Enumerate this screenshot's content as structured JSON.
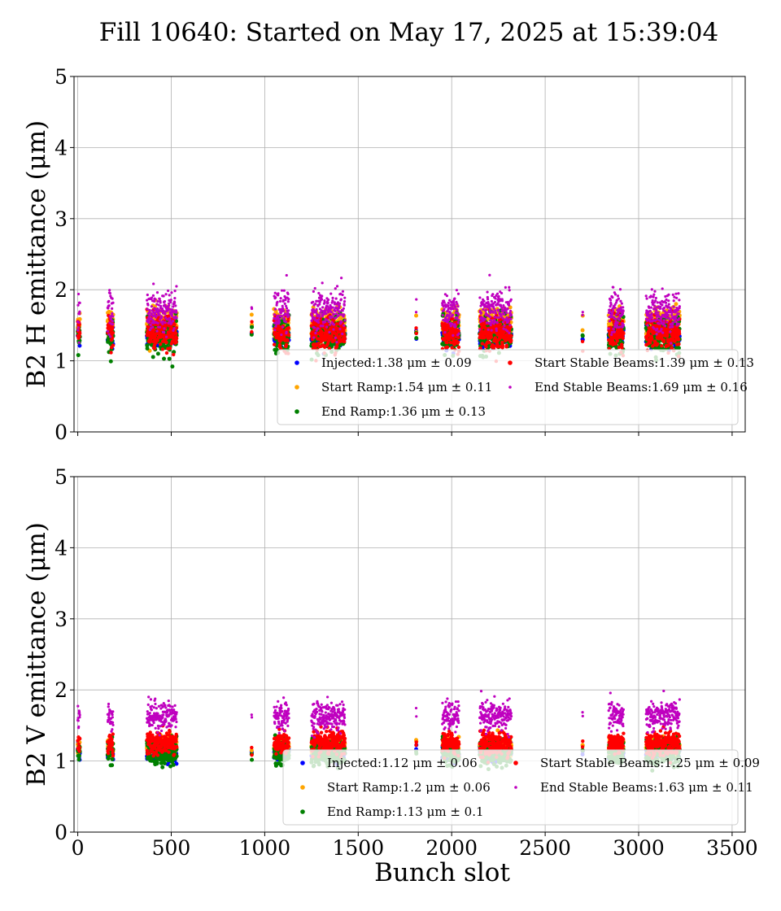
{
  "title": "Fill 10640: Started on May 17, 2025 at 15:39:04",
  "chart_data": [
    {
      "type": "scatter",
      "ylabel": "B2 H emittance (μm)",
      "xlabel": "",
      "xlim": [
        -20,
        3570
      ],
      "ylim": [
        0,
        5
      ],
      "xticks": [
        0,
        500,
        1000,
        1500,
        2000,
        2500,
        3000,
        3500
      ],
      "yticks": [
        0,
        1,
        2,
        3,
        4,
        5
      ],
      "grid": true,
      "legend_position": "lower-right",
      "series": [
        {
          "name": "Injected",
          "color": "#0000ff",
          "mean": 1.38,
          "std": 0.09,
          "label": "Injected:1.38 μm ± 0.09"
        },
        {
          "name": "Start Ramp",
          "color": "#ffa500",
          "mean": 1.54,
          "std": 0.11,
          "label": "Start Ramp:1.54 μm ± 0.11"
        },
        {
          "name": "End Ramp",
          "color": "#008000",
          "mean": 1.36,
          "std": 0.13,
          "label": "End Ramp:1.36 μm ± 0.13"
        },
        {
          "name": "Start Stable Beams",
          "color": "#ff0000",
          "mean": 1.39,
          "std": 0.13,
          "label": "Start Stable Beams:1.39 μm ± 0.13"
        },
        {
          "name": "End Stable Beams",
          "color": "#bf00bf",
          "mean": 1.69,
          "std": 0.16,
          "label": "End Stable Beams:1.69 μm ± 0.16"
        }
      ]
    },
    {
      "type": "scatter",
      "ylabel": "B2 V emittance (μm)",
      "xlabel": "Bunch slot",
      "xlim": [
        -20,
        3570
      ],
      "ylim": [
        0,
        5
      ],
      "xticks": [
        0,
        500,
        1000,
        1500,
        2000,
        2500,
        3000,
        3500
      ],
      "yticks": [
        0,
        1,
        2,
        3,
        4,
        5
      ],
      "grid": true,
      "legend_position": "lower-right",
      "series": [
        {
          "name": "Injected",
          "color": "#0000ff",
          "mean": 1.12,
          "std": 0.06,
          "label": "Injected:1.12 μm ± 0.06"
        },
        {
          "name": "Start Ramp",
          "color": "#ffa500",
          "mean": 1.2,
          "std": 0.06,
          "label": "Start Ramp:1.2 μm ± 0.06"
        },
        {
          "name": "End Ramp",
          "color": "#008000",
          "mean": 1.13,
          "std": 0.1,
          "label": "End Ramp:1.13 μm ± 0.1"
        },
        {
          "name": "Start Stable Beams",
          "color": "#ff0000",
          "mean": 1.25,
          "std": 0.09,
          "label": "Start Stable Beams:1.25 μm ± 0.09"
        },
        {
          "name": "End Stable Beams",
          "color": "#bf00bf",
          "mean": 1.63,
          "std": 0.11,
          "label": "End Stable Beams:1.63 μm ± 0.11"
        }
      ]
    }
  ]
}
